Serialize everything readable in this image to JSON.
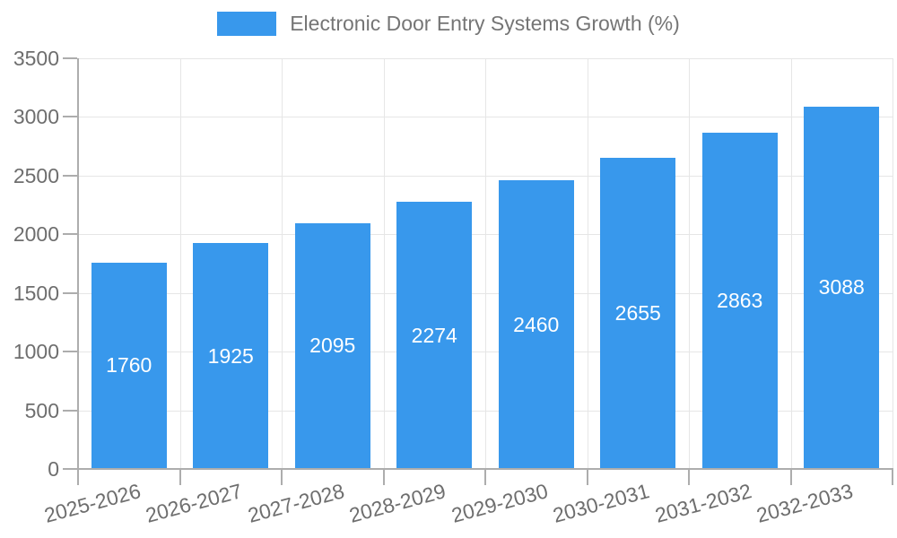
{
  "chart_data": {
    "type": "bar",
    "title": "",
    "categories": [
      "2025-2026",
      "2026-2027",
      "2027-2028",
      "2028-2029",
      "2029-2030",
      "2030-2031",
      "2031-2032",
      "2032-2033"
    ],
    "series": [
      {
        "name": "Electronic Door Entry Systems Growth (%)",
        "values": [
          1760,
          1925,
          2095,
          2274,
          2460,
          2655,
          2863,
          3088
        ]
      }
    ],
    "bar_value_labels": [
      "1760",
      "1925",
      "2095",
      "2274",
      "2460",
      "2655",
      "2863",
      "3088"
    ],
    "ylim": [
      0,
      3500
    ],
    "yticks": [
      0,
      500,
      1000,
      1500,
      2000,
      2500,
      3000,
      3500
    ],
    "grid": true,
    "legend_position": "top-center",
    "colors": {
      "bar": "#3898EC",
      "bar_value_text": "#ffffff",
      "axis_text": "#6e6e6e",
      "legend_text": "#757575",
      "gridline": "#e6e6e6",
      "axis_line": "#adadad"
    }
  }
}
